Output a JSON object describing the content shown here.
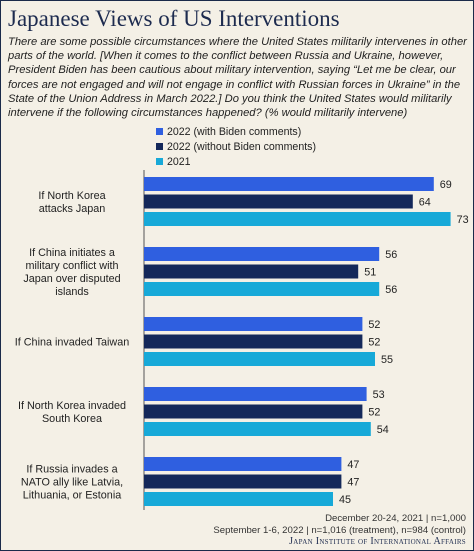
{
  "title": "Japanese Views of US Interventions",
  "question": "There are some possible circumstances where the United States militarily intervenes in other parts of the world. [When it comes to the conflict between Russia and Ukraine, however, President Biden has been cautious about military intervention, saying “Let me be clear, our forces are not engaged and will not engage in conflict with Russian forces in Ukraine” in the State of the Union Address in March 2022.] Do you think the United States would militarily intervene if the following circumstances happened? (% would militarily intervene)",
  "footer": {
    "line1": "December 20-24, 2021 | n=1,000",
    "line2": "September 1-6, 2022  | n=1,016 (treatment), n=984 (control)",
    "source": "Japan Institute of International Affairs"
  },
  "chart_data": {
    "type": "bar",
    "orientation": "horizontal",
    "categories": [
      "If North Korea attacks Japan",
      "If China initiates a military conflict with Japan over disputed islands",
      "If China invaded Taiwan",
      "If North Korea invaded South Korea",
      "If Russia invades a NATO ally like Latvia, Lithuania, or Estonia"
    ],
    "series": [
      {
        "name": "2022 (with Biden comments)",
        "color": "#2f5fe0",
        "values": [
          69,
          56,
          52,
          53,
          47
        ]
      },
      {
        "name": "2022 (without Biden comments)",
        "color": "#14285a",
        "values": [
          64,
          51,
          52,
          52,
          47
        ]
      },
      {
        "name": "2021",
        "color": "#17a9d8",
        "values": [
          73,
          56,
          55,
          54,
          45
        ]
      }
    ],
    "legend": "top",
    "grid": false
  }
}
